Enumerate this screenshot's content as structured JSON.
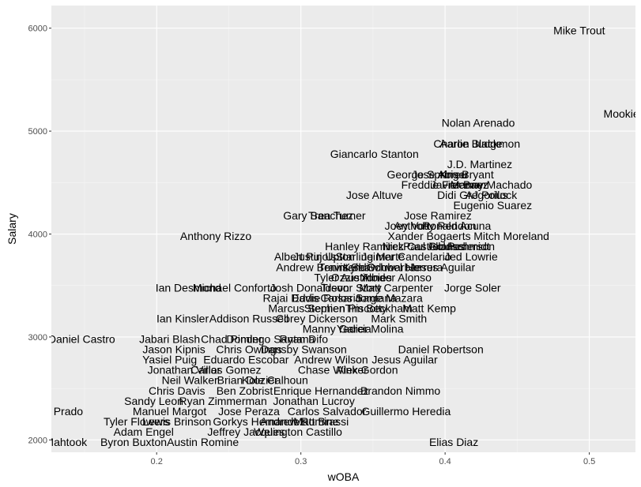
{
  "chart_data": {
    "type": "scatter",
    "mark": "text",
    "xlabel": "wOBA",
    "ylabel": "Salary",
    "xlim": [
      0.127,
      0.532
    ],
    "ylim": [
      1880,
      6220
    ],
    "x_ticks": [
      0.2,
      0.3,
      0.4,
      0.5
    ],
    "x_tick_labels": [
      "0.2",
      "0.3",
      "0.4",
      "0.5"
    ],
    "y_ticks": [
      2000,
      3000,
      4000,
      5000,
      6000
    ],
    "y_tick_labels": [
      "2000",
      "3000",
      "4000",
      "5000",
      "6000"
    ],
    "grid": true,
    "colors": {
      "panel": "#ebebeb",
      "grid_major": "#ffffff",
      "grid_minor": "#f5f5f5",
      "text": "#000000",
      "tick_text": "#4d4d4d"
    },
    "points": [
      {
        "name": "Mike Trout",
        "x": 0.493,
        "y": 5980
      },
      {
        "name": "Mookie Betts",
        "x": 0.532,
        "y": 5170
      },
      {
        "name": "Nolan Arenado",
        "x": 0.423,
        "y": 5080
      },
      {
        "name": "Charlie Blackmon",
        "x": 0.422,
        "y": 4880
      },
      {
        "name": "Aaron Judge",
        "x": 0.418,
        "y": 4880
      },
      {
        "name": "Giancarlo Stanton",
        "x": 0.351,
        "y": 4780
      },
      {
        "name": "J.D. Martinez",
        "x": 0.424,
        "y": 4680
      },
      {
        "name": "Kris Bryant",
        "x": 0.415,
        "y": 4580
      },
      {
        "name": "George Springer",
        "x": 0.388,
        "y": 4580
      },
      {
        "name": "Jose Abreu",
        "x": 0.396,
        "y": 4580
      },
      {
        "name": "Manny Machado",
        "x": 0.432,
        "y": 4480
      },
      {
        "name": "Freddie Freeman",
        "x": 0.399,
        "y": 4480
      },
      {
        "name": "Javier Baez",
        "x": 0.41,
        "y": 4480
      },
      {
        "name": "Jose Altuve",
        "x": 0.351,
        "y": 4380
      },
      {
        "name": "Didi Gregorius",
        "x": 0.419,
        "y": 4380
      },
      {
        "name": "AJ Pollock",
        "x": 0.432,
        "y": 4380
      },
      {
        "name": "Eugenio Suarez",
        "x": 0.433,
        "y": 4280
      },
      {
        "name": "Gary Sanchez",
        "x": 0.312,
        "y": 4180
      },
      {
        "name": "Trea Turner",
        "x": 0.325,
        "y": 4180
      },
      {
        "name": "Jose Ramirez",
        "x": 0.395,
        "y": 4180
      },
      {
        "name": "Joey Votto",
        "x": 0.376,
        "y": 4080
      },
      {
        "name": "Anthony Rendon",
        "x": 0.393,
        "y": 4080
      },
      {
        "name": "Ronald Acuna",
        "x": 0.408,
        "y": 4080
      },
      {
        "name": "Anthony Rizzo",
        "x": 0.241,
        "y": 3980
      },
      {
        "name": "Xander Bogaerts",
        "x": 0.389,
        "y": 3980
      },
      {
        "name": "Mitch Moreland",
        "x": 0.446,
        "y": 3980
      },
      {
        "name": "Hanley Ramirez",
        "x": 0.344,
        "y": 3880
      },
      {
        "name": "Nick Castellanos",
        "x": 0.385,
        "y": 3880
      },
      {
        "name": "Paul Goldschmidt",
        "x": 0.401,
        "y": 3880
      },
      {
        "name": "Joc Pederson",
        "x": 0.411,
        "y": 3880
      },
      {
        "name": "Albert Pujols",
        "x": 0.303,
        "y": 3780
      },
      {
        "name": "Justin Upton",
        "x": 0.316,
        "y": 3780
      },
      {
        "name": "Starling Marte",
        "x": 0.348,
        "y": 3780
      },
      {
        "name": "Jeimer Candelario",
        "x": 0.373,
        "y": 3780
      },
      {
        "name": "Jed Lowrie",
        "x": 0.418,
        "y": 3780
      },
      {
        "name": "Andrew Benintendi",
        "x": 0.315,
        "y": 3680
      },
      {
        "name": "Travis Shaw",
        "x": 0.333,
        "y": 3680
      },
      {
        "name": "Kyle Schwarber",
        "x": 0.356,
        "y": 3680
      },
      {
        "name": "Odubel Herrera",
        "x": 0.372,
        "y": 3680
      },
      {
        "name": "Jesus Aguilar",
        "x": 0.398,
        "y": 3680
      },
      {
        "name": "Ozzie Albies",
        "x": 0.342,
        "y": 3580
      },
      {
        "name": "Yonder Alonso",
        "x": 0.366,
        "y": 3580
      },
      {
        "name": "Tyler Austin",
        "x": 0.329,
        "y": 3580
      },
      {
        "name": "Ian Desmond",
        "x": 0.222,
        "y": 3480
      },
      {
        "name": "Michael Conforto",
        "x": 0.254,
        "y": 3480
      },
      {
        "name": "Josh Donaldson",
        "x": 0.306,
        "y": 3480
      },
      {
        "name": "Trevor Story",
        "x": 0.335,
        "y": 3480
      },
      {
        "name": "Matt Carpenter",
        "x": 0.366,
        "y": 3480
      },
      {
        "name": "Jorge Soler",
        "x": 0.419,
        "y": 3480
      },
      {
        "name": "Rajai Davis",
        "x": 0.293,
        "y": 3380
      },
      {
        "name": "Eddie Rosario",
        "x": 0.318,
        "y": 3380
      },
      {
        "name": "Carlos Santana",
        "x": 0.34,
        "y": 3380
      },
      {
        "name": "Jorge Mazara",
        "x": 0.361,
        "y": 3380
      },
      {
        "name": "Marcus Semien",
        "x": 0.304,
        "y": 3280
      },
      {
        "name": "Stephen Piscotty",
        "x": 0.331,
        "y": 3280
      },
      {
        "name": "Tim Beckham",
        "x": 0.354,
        "y": 3280
      },
      {
        "name": "Matt Kemp",
        "x": 0.389,
        "y": 3280
      },
      {
        "name": "Ian Kinsler",
        "x": 0.218,
        "y": 3180
      },
      {
        "name": "Addison Russell",
        "x": 0.264,
        "y": 3180
      },
      {
        "name": "Corey Dickerson",
        "x": 0.311,
        "y": 3180
      },
      {
        "name": "Mark Smith",
        "x": 0.368,
        "y": 3180
      },
      {
        "name": "Manny Garcia",
        "x": 0.325,
        "y": 3080
      },
      {
        "name": "Yadier Molina",
        "x": 0.348,
        "y": 3080
      },
      {
        "name": "Daniel Castro",
        "x": 0.148,
        "y": 2980
      },
      {
        "name": "Jabari Blash",
        "x": 0.209,
        "y": 2980
      },
      {
        "name": "Chad Pinder",
        "x": 0.252,
        "y": 2980
      },
      {
        "name": "Domingo Santana",
        "x": 0.279,
        "y": 2980
      },
      {
        "name": "Ryan Difo",
        "x": 0.302,
        "y": 2980
      },
      {
        "name": "Jason Kipnis",
        "x": 0.212,
        "y": 2880
      },
      {
        "name": "Chris Owings",
        "x": 0.264,
        "y": 2880
      },
      {
        "name": "Dansby Swanson",
        "x": 0.302,
        "y": 2880
      },
      {
        "name": "Daniel Robertson",
        "x": 0.397,
        "y": 2880
      },
      {
        "name": "Yasiel Puig",
        "x": 0.209,
        "y": 2780
      },
      {
        "name": "Eduardo Escobar",
        "x": 0.262,
        "y": 2780
      },
      {
        "name": "Andrew Wilson",
        "x": 0.321,
        "y": 2780
      },
      {
        "name": "Jesus Aguilar",
        "x": 0.372,
        "y": 2780
      },
      {
        "name": "Jonathan Villar",
        "x": 0.219,
        "y": 2680
      },
      {
        "name": "Carlos Gomez",
        "x": 0.248,
        "y": 2680
      },
      {
        "name": "Chase Winker",
        "x": 0.322,
        "y": 2680
      },
      {
        "name": "Alex Gordon",
        "x": 0.346,
        "y": 2680
      },
      {
        "name": "Neil Walker",
        "x": 0.223,
        "y": 2580
      },
      {
        "name": "Brian Dozier",
        "x": 0.263,
        "y": 2580
      },
      {
        "name": "Kole Calhoun",
        "x": 0.282,
        "y": 2580
      },
      {
        "name": "Chris Davis",
        "x": 0.214,
        "y": 2480
      },
      {
        "name": "Ben Zobrist",
        "x": 0.261,
        "y": 2480
      },
      {
        "name": "Enrique Hernandez",
        "x": 0.314,
        "y": 2480
      },
      {
        "name": "Brandon Nimmo",
        "x": 0.369,
        "y": 2480
      },
      {
        "name": "Sandy Leon",
        "x": 0.198,
        "y": 2380
      },
      {
        "name": "Ryan Zimmerman",
        "x": 0.246,
        "y": 2380
      },
      {
        "name": "Jonathan Lucroy",
        "x": 0.309,
        "y": 2380
      },
      {
        "name": "Martin Prado",
        "x": 0.127,
        "y": 2280
      },
      {
        "name": "Manuel Margot",
        "x": 0.209,
        "y": 2280
      },
      {
        "name": "Jose Peraza",
        "x": 0.264,
        "y": 2280
      },
      {
        "name": "Carlos Salvador",
        "x": 0.318,
        "y": 2280
      },
      {
        "name": "Guillermo Heredia",
        "x": 0.373,
        "y": 2280
      },
      {
        "name": "Tyler Flowers",
        "x": 0.186,
        "y": 2180
      },
      {
        "name": "Lewis Brinson",
        "x": 0.214,
        "y": 2180
      },
      {
        "name": "Gorkys Hernandez",
        "x": 0.271,
        "y": 2180
      },
      {
        "name": "Andrew Romine",
        "x": 0.299,
        "y": 2180
      },
      {
        "name": "Matt Brassi",
        "x": 0.314,
        "y": 2180
      },
      {
        "name": "Adam Engel",
        "x": 0.191,
        "y": 2080
      },
      {
        "name": "Jeffrey Jacques",
        "x": 0.262,
        "y": 2080
      },
      {
        "name": "Welington Castillo",
        "x": 0.298,
        "y": 2080
      },
      {
        "name": "Mikie Mahtook",
        "x": 0.127,
        "y": 1980
      },
      {
        "name": "Byron Buxton",
        "x": 0.184,
        "y": 1980
      },
      {
        "name": "Austin Romine",
        "x": 0.232,
        "y": 1980
      },
      {
        "name": "Elias Diaz",
        "x": 0.406,
        "y": 1980
      }
    ]
  }
}
